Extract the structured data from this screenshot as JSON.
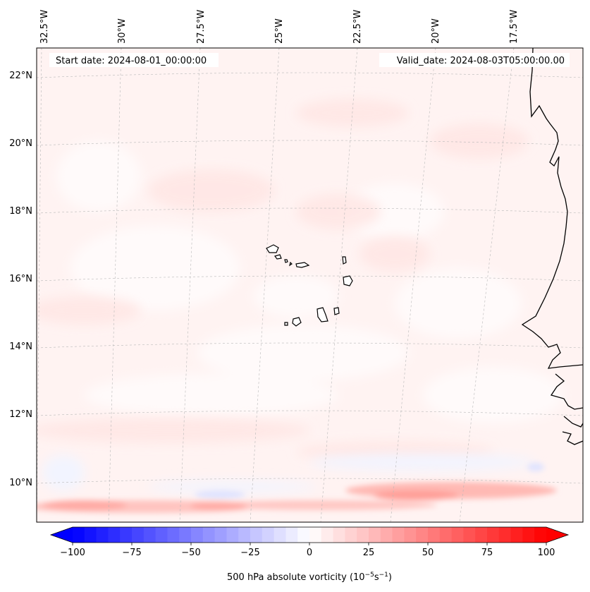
{
  "map": {
    "start_date_label": "Start date: 2024-08-01_00:00:00",
    "valid_date_label": "Valid_date: 2024-08-03T05:00:00.00",
    "lon_labels": [
      "32.5°W",
      "30°W",
      "27.5°W",
      "25°W",
      "22.5°W",
      "20°W",
      "17.5°W"
    ],
    "lat_labels": [
      "22°N",
      "20°N",
      "18°N",
      "16°N",
      "14°N",
      "12°N",
      "10°N"
    ],
    "colorbar": {
      "label_text": "500 hPa absolute vorticity (10",
      "label_exp1": "−5",
      "label_mid": "s",
      "label_exp2": "−1",
      "label_end": ")",
      "ticks": [
        "−100",
        "−75",
        "−50",
        "−25",
        "0",
        "25",
        "50",
        "75",
        "100"
      ],
      "min": -100,
      "max": 100,
      "low_color": "#0000ff",
      "mid_color": "#ffffff",
      "high_color": "#ff0000"
    }
  }
}
